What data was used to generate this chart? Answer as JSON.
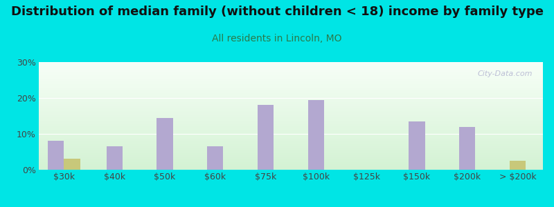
{
  "title": "Distribution of median family (without children < 18) income by family type",
  "subtitle": "All residents in Lincoln, MO",
  "categories": [
    "$30k",
    "$40k",
    "$50k",
    "$60k",
    "$75k",
    "$100k",
    "$125k",
    "$150k",
    "$200k",
    "> $200k"
  ],
  "married_couple": [
    8.0,
    6.5,
    14.5,
    6.5,
    18.0,
    19.5,
    0.0,
    13.5,
    12.0,
    0.0
  ],
  "female_no_husband": [
    3.0,
    0.0,
    0.0,
    0.0,
    0.0,
    0.0,
    0.0,
    0.0,
    0.0,
    2.5
  ],
  "bar_color_married": "#b3a8d0",
  "bar_color_female": "#c8c87a",
  "bg_color": "#00e5e5",
  "title_fontsize": 13,
  "subtitle_fontsize": 10,
  "subtitle_color": "#2a7a4a",
  "title_color": "#111111",
  "ylim": [
    0,
    30
  ],
  "yticks": [
    0,
    10,
    20,
    30
  ],
  "bar_width": 0.32,
  "watermark": "City-Data.com"
}
